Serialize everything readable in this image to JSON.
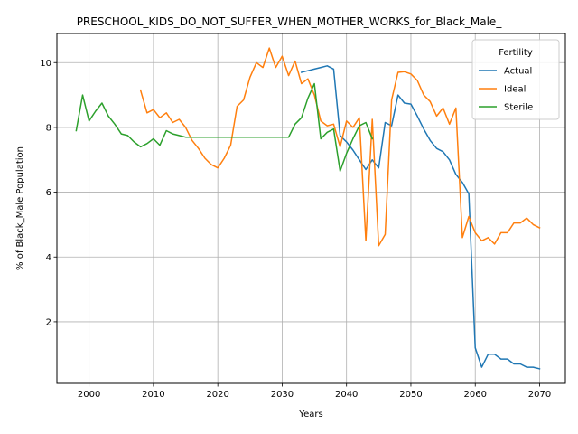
{
  "chart_data": {
    "type": "line",
    "title": "PRESCHOOL_KIDS_DO_NOT_SUFFER_WHEN_MOTHER_WORKS_for_Black_Male_",
    "xlabel": "Years",
    "ylabel": "% of Black_Male Population",
    "xlim": [
      1995,
      2074
    ],
    "ylim": [
      0.1,
      10.9
    ],
    "xticks": [
      2000,
      2010,
      2020,
      2030,
      2040,
      2050,
      2060,
      2070
    ],
    "yticks": [
      2,
      4,
      6,
      8,
      10
    ],
    "grid": true,
    "legend": {
      "title": "Fertility",
      "placement": "top-right"
    },
    "series": [
      {
        "name": "Actual",
        "color": "#1f77b4",
        "points": [
          [
            2033,
            9.7
          ],
          [
            2034,
            9.75
          ],
          [
            2035,
            9.8
          ],
          [
            2036,
            9.85
          ],
          [
            2037,
            9.9
          ],
          [
            2038,
            9.8
          ],
          [
            2039,
            7.75
          ],
          [
            2040,
            7.55
          ],
          [
            2041,
            7.3
          ],
          [
            2042,
            7.0
          ],
          [
            2043,
            6.7
          ],
          [
            2044,
            7.0
          ],
          [
            2045,
            6.75
          ],
          [
            2046,
            8.15
          ],
          [
            2047,
            8.05
          ],
          [
            2048,
            9.0
          ],
          [
            2049,
            8.75
          ],
          [
            2050,
            8.72
          ],
          [
            2051,
            8.35
          ],
          [
            2052,
            7.95
          ],
          [
            2053,
            7.6
          ],
          [
            2054,
            7.35
          ],
          [
            2055,
            7.25
          ],
          [
            2056,
            7.0
          ],
          [
            2057,
            6.55
          ],
          [
            2058,
            6.3
          ],
          [
            2059,
            5.95
          ],
          [
            2060,
            1.2
          ],
          [
            2061,
            0.6
          ],
          [
            2062,
            1.0
          ],
          [
            2063,
            1.0
          ],
          [
            2064,
            0.85
          ],
          [
            2065,
            0.85
          ],
          [
            2066,
            0.7
          ],
          [
            2067,
            0.7
          ],
          [
            2068,
            0.6
          ],
          [
            2069,
            0.6
          ],
          [
            2070,
            0.55
          ]
        ]
      },
      {
        "name": "Ideal",
        "color": "#ff7f0e",
        "points": [
          [
            2008,
            9.15
          ],
          [
            2009,
            8.45
          ],
          [
            2010,
            8.55
          ],
          [
            2011,
            8.3
          ],
          [
            2012,
            8.45
          ],
          [
            2013,
            8.15
          ],
          [
            2014,
            8.25
          ],
          [
            2015,
            8.0
          ],
          [
            2016,
            7.6
          ],
          [
            2017,
            7.35
          ],
          [
            2018,
            7.05
          ],
          [
            2019,
            6.85
          ],
          [
            2020,
            6.75
          ],
          [
            2021,
            7.05
          ],
          [
            2022,
            7.45
          ],
          [
            2023,
            8.65
          ],
          [
            2024,
            8.85
          ],
          [
            2025,
            9.55
          ],
          [
            2026,
            10.0
          ],
          [
            2027,
            9.85
          ],
          [
            2028,
            10.45
          ],
          [
            2029,
            9.85
          ],
          [
            2030,
            10.2
          ],
          [
            2031,
            9.6
          ],
          [
            2032,
            10.05
          ],
          [
            2033,
            9.35
          ],
          [
            2034,
            9.5
          ],
          [
            2035,
            9.0
          ],
          [
            2036,
            8.2
          ],
          [
            2037,
            8.05
          ],
          [
            2038,
            8.1
          ],
          [
            2039,
            7.4
          ],
          [
            2040,
            8.2
          ],
          [
            2041,
            8.0
          ],
          [
            2042,
            8.3
          ],
          [
            2043,
            4.5
          ],
          [
            2044,
            8.25
          ],
          [
            2045,
            4.35
          ],
          [
            2046,
            4.7
          ],
          [
            2047,
            8.85
          ],
          [
            2048,
            9.7
          ],
          [
            2049,
            9.72
          ],
          [
            2050,
            9.65
          ],
          [
            2051,
            9.45
          ],
          [
            2052,
            9.0
          ],
          [
            2053,
            8.8
          ],
          [
            2054,
            8.35
          ],
          [
            2055,
            8.6
          ],
          [
            2056,
            8.1
          ],
          [
            2057,
            8.6
          ],
          [
            2058,
            4.6
          ],
          [
            2059,
            5.25
          ],
          [
            2060,
            4.75
          ],
          [
            2061,
            4.5
          ],
          [
            2062,
            4.6
          ],
          [
            2063,
            4.4
          ],
          [
            2064,
            4.75
          ],
          [
            2065,
            4.75
          ],
          [
            2066,
            5.05
          ],
          [
            2067,
            5.05
          ],
          [
            2068,
            5.2
          ],
          [
            2069,
            5.0
          ],
          [
            2070,
            4.9
          ]
        ]
      },
      {
        "name": "Sterile",
        "color": "#2ca02c",
        "points": [
          [
            1998,
            7.9
          ],
          [
            1999,
            9.0
          ],
          [
            2000,
            8.2
          ],
          [
            2001,
            8.5
          ],
          [
            2002,
            8.75
          ],
          [
            2003,
            8.35
          ],
          [
            2004,
            8.1
          ],
          [
            2005,
            7.8
          ],
          [
            2006,
            7.75
          ],
          [
            2007,
            7.55
          ],
          [
            2008,
            7.4
          ],
          [
            2009,
            7.5
          ],
          [
            2010,
            7.65
          ],
          [
            2011,
            7.45
          ],
          [
            2012,
            7.9
          ],
          [
            2013,
            7.8
          ],
          [
            2014,
            7.75
          ],
          [
            2015,
            7.7
          ],
          [
            2016,
            7.7
          ],
          [
            2017,
            7.7
          ],
          [
            2018,
            7.7
          ],
          [
            2019,
            7.7
          ],
          [
            2020,
            7.7
          ],
          [
            2021,
            7.7
          ],
          [
            2022,
            7.7
          ],
          [
            2023,
            7.7
          ],
          [
            2024,
            7.7
          ],
          [
            2025,
            7.7
          ],
          [
            2026,
            7.7
          ],
          [
            2027,
            7.7
          ],
          [
            2028,
            7.7
          ],
          [
            2029,
            7.7
          ],
          [
            2030,
            7.7
          ],
          [
            2031,
            7.7
          ],
          [
            2032,
            8.1
          ],
          [
            2033,
            8.3
          ],
          [
            2034,
            8.9
          ],
          [
            2035,
            9.35
          ],
          [
            2036,
            7.65
          ],
          [
            2037,
            7.85
          ],
          [
            2038,
            7.95
          ],
          [
            2039,
            6.65
          ],
          [
            2040,
            7.2
          ],
          [
            2041,
            7.65
          ],
          [
            2042,
            8.05
          ],
          [
            2043,
            8.15
          ],
          [
            2044,
            7.65
          ]
        ]
      }
    ]
  }
}
